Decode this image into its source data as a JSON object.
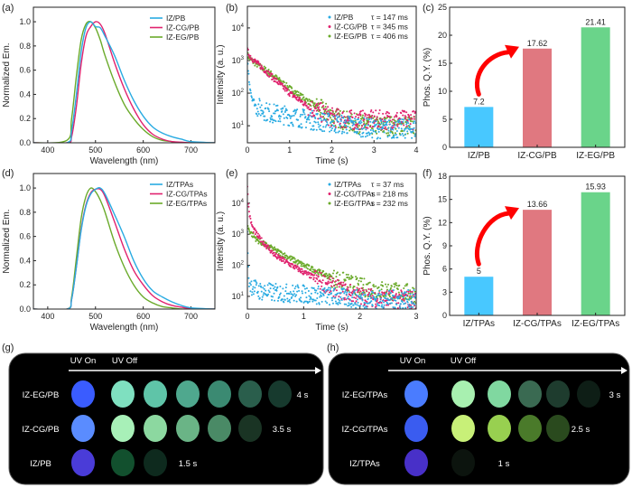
{
  "chart_data": [
    {
      "panel_label": "(a)",
      "type": "line",
      "xlabel": "Wavelength (nm)",
      "ylabel": "Normalized Em.",
      "xlim": [
        370,
        750
      ],
      "ylim": [
        0,
        1.12
      ],
      "xticks": [
        400,
        500,
        600,
        700
      ],
      "yticks": [
        0.0,
        0.2,
        0.4,
        0.6,
        0.8,
        1.0
      ],
      "legend_position": "top-right",
      "x": [
        370,
        440,
        450,
        460,
        470,
        480,
        490,
        500,
        510,
        520,
        540,
        560,
        580,
        600,
        620,
        640,
        660,
        680,
        700,
        750
      ],
      "series": [
        {
          "name": "IZ/PB",
          "color": "#29abe2",
          "values": [
            0,
            0,
            0.1,
            0.4,
            0.75,
            0.95,
            1.0,
            0.96,
            0.95,
            0.88,
            0.72,
            0.52,
            0.35,
            0.22,
            0.13,
            0.08,
            0.05,
            0.03,
            0.01,
            0
          ]
        },
        {
          "name": "IZ-CG/PB",
          "color": "#e0226e",
          "values": [
            0,
            0,
            0.05,
            0.3,
            0.65,
            0.88,
            0.96,
            1.0,
            0.98,
            0.9,
            0.66,
            0.45,
            0.28,
            0.15,
            0.07,
            0.03,
            0.01,
            0.005,
            0,
            0
          ]
        },
        {
          "name": "IZ-EG/PB",
          "color": "#6aaa2a",
          "values": [
            0,
            0.02,
            0.2,
            0.55,
            0.85,
            0.98,
            1.0,
            0.95,
            0.85,
            0.72,
            0.5,
            0.32,
            0.2,
            0.11,
            0.05,
            0.02,
            0.01,
            0,
            0,
            0
          ]
        }
      ]
    },
    {
      "panel_label": "(b)",
      "type": "scatter",
      "xlabel": "Time (s)",
      "ylabel": "Intensity (a. u.)",
      "yscale": "log",
      "xlim": [
        0,
        4
      ],
      "ylim": [
        3,
        46000
      ],
      "xticks": [
        0,
        1,
        2,
        3,
        4
      ],
      "yticks": [
        10,
        100,
        1000,
        10000
      ],
      "legend_position": "top-right",
      "x": [
        0,
        0.05,
        0.1,
        0.2,
        0.5,
        1,
        1.5,
        2,
        2.5,
        3,
        3.5,
        4
      ],
      "series": [
        {
          "name": "IZ/PB",
          "tau": "τ = 147 ms",
          "color": "#29abe2",
          "values": [
            1000,
            200,
            80,
            40,
            25,
            20,
            15,
            12,
            10,
            8,
            8,
            8
          ]
        },
        {
          "name": "IZ-CG/PB",
          "tau": "τ = 345 ms",
          "color": "#e0226e",
          "values": [
            2000,
            1500,
            1200,
            900,
            400,
            100,
            35,
            18,
            15,
            15,
            15,
            15
          ]
        },
        {
          "name": "IZ-EG/PB",
          "tau": "τ = 406 ms",
          "color": "#6aaa2a",
          "values": [
            1500,
            1200,
            1000,
            800,
            450,
            140,
            50,
            20,
            12,
            10,
            10,
            10
          ]
        }
      ]
    },
    {
      "panel_label": "(c)",
      "type": "bar",
      "ylabel": "Phos. Q.Y. (%)",
      "ylim": [
        0,
        25
      ],
      "yticks": [
        0,
        5,
        10,
        15,
        20,
        25
      ],
      "categories": [
        "IZ/PB",
        "IZ-CG/PB",
        "IZ-EG/PB"
      ],
      "values": [
        7.2,
        17.62,
        21.41
      ],
      "data_labels": [
        "7.2",
        "17.62",
        "21.41"
      ],
      "colors": [
        "#48c8ff",
        "#e07880",
        "#6ad48a"
      ],
      "arrow_color": "#ff0000"
    },
    {
      "panel_label": "(d)",
      "type": "line",
      "xlabel": "Wavelength (nm)",
      "ylabel": "Normalized Em.",
      "xlim": [
        370,
        750
      ],
      "ylim": [
        0,
        1.12
      ],
      "xticks": [
        400,
        500,
        600,
        700
      ],
      "yticks": [
        0.0,
        0.2,
        0.4,
        0.6,
        0.8,
        1.0
      ],
      "legend_position": "top-right",
      "x": [
        370,
        440,
        450,
        460,
        470,
        480,
        490,
        500,
        510,
        520,
        540,
        560,
        580,
        600,
        620,
        640,
        660,
        680,
        700,
        750
      ],
      "series": [
        {
          "name": "IZ/TPAs",
          "color": "#29abe2",
          "values": [
            0,
            0,
            0.08,
            0.35,
            0.65,
            0.85,
            0.95,
            0.99,
            1.0,
            0.95,
            0.78,
            0.6,
            0.4,
            0.25,
            0.15,
            0.1,
            0.06,
            0.03,
            0.01,
            0
          ]
        },
        {
          "name": "IZ-CG/TPAs",
          "color": "#e0226e",
          "values": [
            0,
            0,
            0.08,
            0.35,
            0.66,
            0.86,
            0.96,
            0.99,
            0.99,
            0.93,
            0.72,
            0.5,
            0.32,
            0.2,
            0.11,
            0.06,
            0.03,
            0.015,
            0.005,
            0
          ]
        },
        {
          "name": "IZ-EG/TPAs",
          "color": "#6aaa2a",
          "values": [
            0,
            0,
            0.1,
            0.42,
            0.75,
            0.93,
            1.0,
            0.97,
            0.9,
            0.8,
            0.55,
            0.35,
            0.2,
            0.1,
            0.05,
            0.02,
            0.01,
            0,
            0,
            0
          ]
        }
      ]
    },
    {
      "panel_label": "(e)",
      "type": "scatter",
      "xlabel": "Time (s)",
      "ylabel": "Intensity (a. u.)",
      "yscale": "log",
      "xlim": [
        0,
        3
      ],
      "ylim": [
        3.9,
        90000
      ],
      "xticks": [
        0,
        1,
        2,
        3
      ],
      "yticks": [
        10,
        100,
        1000,
        10000
      ],
      "legend_position": "top-right",
      "x": [
        0,
        0.02,
        0.05,
        0.1,
        0.2,
        0.5,
        1,
        1.5,
        2,
        2.5,
        3
      ],
      "series": [
        {
          "name": "IZ/TPAs",
          "tau": "τ = 37 ms",
          "color": "#29abe2",
          "values": [
            1000,
            40,
            25,
            20,
            15,
            13,
            12,
            10,
            8,
            8,
            8
          ]
        },
        {
          "name": "IZ-CG/TPAs",
          "tau": "τ = 218 ms",
          "color": "#e0226e",
          "values": [
            30000,
            8000,
            3000,
            1500,
            800,
            200,
            60,
            20,
            10,
            8,
            8
          ]
        },
        {
          "name": "IZ-EG/TPAs",
          "tau": "τ = 232 ms",
          "color": "#6aaa2a",
          "values": [
            2000,
            1500,
            1200,
            900,
            600,
            300,
            100,
            40,
            20,
            15,
            12
          ]
        }
      ]
    },
    {
      "panel_label": "(f)",
      "type": "bar",
      "ylabel": "Phos. Q.Y. (%)",
      "ylim": [
        0,
        18
      ],
      "yticks": [
        0,
        3,
        6,
        9,
        12,
        15,
        18
      ],
      "categories": [
        "IZ/TPAs",
        "IZ-CG/TPAs",
        "IZ-EG/TPAs"
      ],
      "values": [
        5,
        13.66,
        15.93
      ],
      "data_labels": [
        "5",
        "13.66",
        "15.93"
      ],
      "colors": [
        "#48c8ff",
        "#e07880",
        "#6ad48a"
      ],
      "arrow_color": "#ff0000"
    }
  ],
  "photos": [
    {
      "panel_label": "(g)",
      "uv_on": "UV On",
      "uv_off": "UV Off",
      "rows": [
        {
          "label": "IZ-EG/PB",
          "time": "4 s",
          "colors": [
            "#3a5cff",
            "#7fe0c0",
            "#5fc4a8",
            "#4fa88e",
            "#3b8a72",
            "#2a5e4c",
            "#173a2e"
          ]
        },
        {
          "label": "IZ-CG/PB",
          "time": "3.5 s",
          "colors": [
            "#5a8cff",
            "#a8f0b8",
            "#8cd8a0",
            "#6ab486",
            "#4a8a66",
            "#1a3424"
          ]
        },
        {
          "label": "IZ/PB",
          "time": "1.5 s",
          "colors": [
            "#4a3cd8",
            "#12502e",
            "#0e2a1e"
          ]
        }
      ]
    },
    {
      "panel_label": "(h)",
      "uv_on": "UV On",
      "uv_off": "UV Off",
      "rows": [
        {
          "label": "IZ-EG/TPAs",
          "time": "3 s",
          "colors": [
            "#4a7cff",
            "#a8f0b0",
            "#80d8a0",
            "#3a6a52",
            "#1e3c2e",
            "#0e1e16"
          ]
        },
        {
          "label": "IZ-CG/TPAs",
          "time": "2.5 s",
          "colors": [
            "#3a5cf0",
            "#c8f078",
            "#98d050",
            "#4a7a2a",
            "#2a4a1e"
          ]
        },
        {
          "label": "IZ/TPAs",
          "time": "1 s",
          "colors": [
            "#4830c8",
            "#0c140e"
          ]
        }
      ]
    }
  ]
}
